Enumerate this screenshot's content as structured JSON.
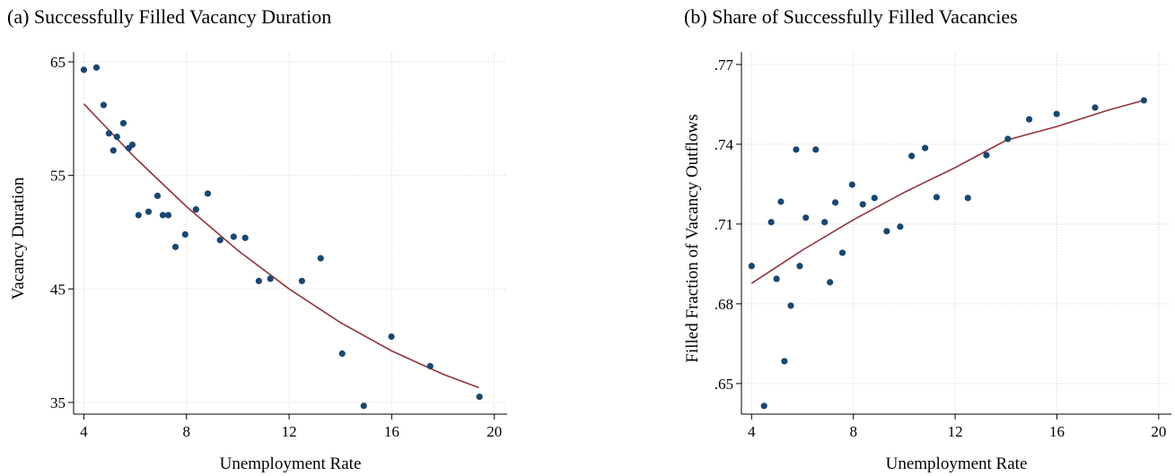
{
  "chart_data": [
    {
      "type": "scatter",
      "title": "(a) Successfully Filled Vacancy Duration",
      "x_label": "Unemployment Rate",
      "y_label": "Vacancy Duration",
      "x": [
        4.0,
        4.49,
        4.77,
        4.98,
        5.15,
        5.29,
        5.54,
        5.75,
        5.89,
        6.13,
        6.52,
        6.87,
        7.08,
        7.29,
        7.57,
        7.95,
        8.37,
        8.83,
        9.31,
        9.84,
        10.29,
        10.82,
        11.27,
        12.5,
        13.23,
        14.07,
        14.91,
        15.99,
        17.5,
        19.42
      ],
      "values": [
        64.3,
        64.5,
        61.2,
        58.7,
        57.2,
        58.4,
        59.6,
        57.4,
        57.7,
        51.5,
        51.8,
        53.2,
        51.5,
        51.5,
        48.7,
        49.8,
        52.0,
        53.4,
        49.3,
        49.6,
        49.5,
        45.7,
        45.9,
        45.7,
        47.7,
        39.3,
        34.7,
        40.8,
        38.2,
        35.5
      ],
      "color": "#1a476f",
      "fit": {
        "x": [
          4,
          6,
          8,
          10,
          12,
          14,
          16,
          18,
          19.4
        ],
        "values": [
          61.3,
          56.55,
          52.25,
          48.4,
          45.0,
          42.04,
          39.54,
          37.48,
          36.3
        ]
      },
      "fit_color": "#90353b",
      "xlim": [
        3.6,
        20.5
      ],
      "ylim": [
        33.97,
        65.87
      ],
      "xticks": [
        4,
        8,
        12,
        16,
        20
      ],
      "yticks": [
        35,
        45,
        55,
        65
      ],
      "grid": true
    },
    {
      "type": "scatter",
      "title": "(b) Share of Successfully Filled Vacancies",
      "x_label": "Unemployment Rate",
      "y_label": "Filled Fraction of Vacancy Outflows",
      "x": [
        4.0,
        4.49,
        4.77,
        4.98,
        5.15,
        5.29,
        5.54,
        5.75,
        5.89,
        6.13,
        6.52,
        6.87,
        7.08,
        7.29,
        7.57,
        7.95,
        8.37,
        8.83,
        9.31,
        9.84,
        10.29,
        10.82,
        11.27,
        12.5,
        13.23,
        14.07,
        14.91,
        15.99,
        17.5,
        19.42
      ],
      "values": [
        0.6942,
        0.6416,
        0.7107,
        0.6894,
        0.7184,
        0.6584,
        0.6793,
        0.738,
        0.6942,
        0.7124,
        0.738,
        0.7107,
        0.6881,
        0.7181,
        0.6992,
        0.7248,
        0.7174,
        0.7198,
        0.7073,
        0.709,
        0.7356,
        0.7386,
        0.7201,
        0.7198,
        0.7359,
        0.742,
        0.7494,
        0.7514,
        0.7538,
        0.7565
      ],
      "color": "#1a476f",
      "fit": {
        "x": [
          4,
          6,
          8,
          10,
          12,
          14,
          16,
          18,
          19.4
        ],
        "values": [
          0.6877,
          0.7002,
          0.7116,
          0.7219,
          0.7312,
          0.7415,
          0.7467,
          0.7528,
          0.7565
        ]
      },
      "fit_color": "#90353b",
      "xlim": [
        3.6,
        20.5
      ],
      "ylim": [
        0.6385,
        0.7747
      ],
      "xticks": [
        4,
        8,
        12,
        16,
        20
      ],
      "yticks": [
        {
          "value": 0.65,
          "label": ".65"
        },
        {
          "value": 0.68,
          "label": ".68"
        },
        {
          "value": 0.71,
          "label": ".71"
        },
        {
          "value": 0.74,
          "label": ".74"
        },
        {
          "value": 0.77,
          "label": ".77"
        }
      ],
      "grid": true
    }
  ]
}
